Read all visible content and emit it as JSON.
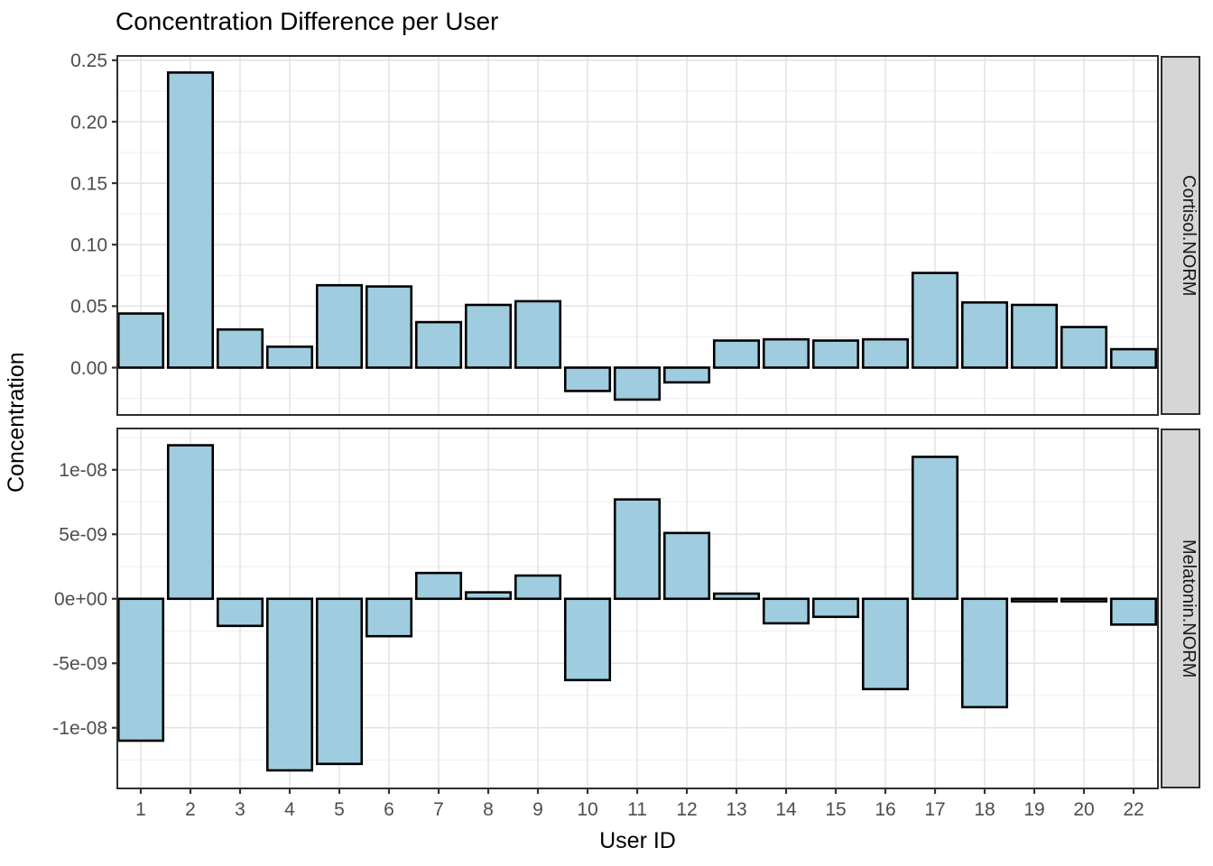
{
  "chart_data": {
    "type": "bar",
    "title": "Concentration Difference per User",
    "xlabel": "User ID",
    "ylabel": "Concentration",
    "legend": "none",
    "grid": true,
    "categories": [
      "1",
      "2",
      "3",
      "4",
      "5",
      "6",
      "7",
      "8",
      "9",
      "10",
      "11",
      "12",
      "13",
      "14",
      "15",
      "16",
      "17",
      "18",
      "19",
      "20",
      "22"
    ],
    "facets": [
      {
        "label": "Cortisol.NORM",
        "values": [
          0.044,
          0.24,
          0.031,
          0.017,
          0.067,
          0.066,
          0.037,
          0.051,
          0.054,
          -0.019,
          -0.026,
          -0.012,
          0.022,
          0.023,
          0.022,
          0.023,
          0.077,
          0.053,
          0.051,
          0.033,
          0.015
        ],
        "ylim": [
          -0.0385,
          0.2535
        ],
        "yticks": [
          0.25,
          0.2,
          0.15,
          0.1,
          0.05,
          0.0
        ],
        "ytick_labels": [
          "0.25",
          "0.20",
          "0.15",
          "0.10",
          "0.05",
          "0.00"
        ],
        "minor_ticks": [
          0.225,
          0.175,
          0.125,
          0.075,
          0.025,
          -0.025
        ]
      },
      {
        "label": "Melatonin.NORM",
        "values": [
          -1.1e-08,
          1.19e-08,
          -2.1e-09,
          -1.33e-08,
          -1.28e-08,
          -2.9e-09,
          2e-09,
          5e-10,
          1.8e-09,
          -6.3e-09,
          7.7e-09,
          5.1e-09,
          4e-10,
          -1.9e-09,
          -1.4e-09,
          -7e-09,
          1.1e-08,
          -8.4e-09,
          -2e-10,
          -2e-10,
          -2e-09
        ],
        "ylim": [
          -1.47e-08,
          1.32e-08
        ],
        "yticks": [
          1e-08,
          5e-09,
          0,
          -5e-09,
          -1e-08
        ],
        "ytick_labels": [
          "1e-08",
          "5e-09",
          "0e+00",
          "-5e-09",
          "-1e-08"
        ],
        "minor_ticks": [
          1.25e-08,
          7.5e-09,
          2.5e-09,
          -2.5e-09,
          -7.5e-09,
          -1.25e-08
        ]
      }
    ],
    "style": {
      "bar_fill": "#9FCDDF",
      "bar_stroke": "#000000",
      "grid_major": "#E3E3E3",
      "grid_minor": "#F1F1F1",
      "panel_border": "#2E2E2E",
      "panel_bg": "#FFFFFF",
      "strip_bg": "#D6D6D6",
      "tick_mark": "#333333",
      "tick_text": "#4D4D4D",
      "title_text": "#000000"
    }
  }
}
